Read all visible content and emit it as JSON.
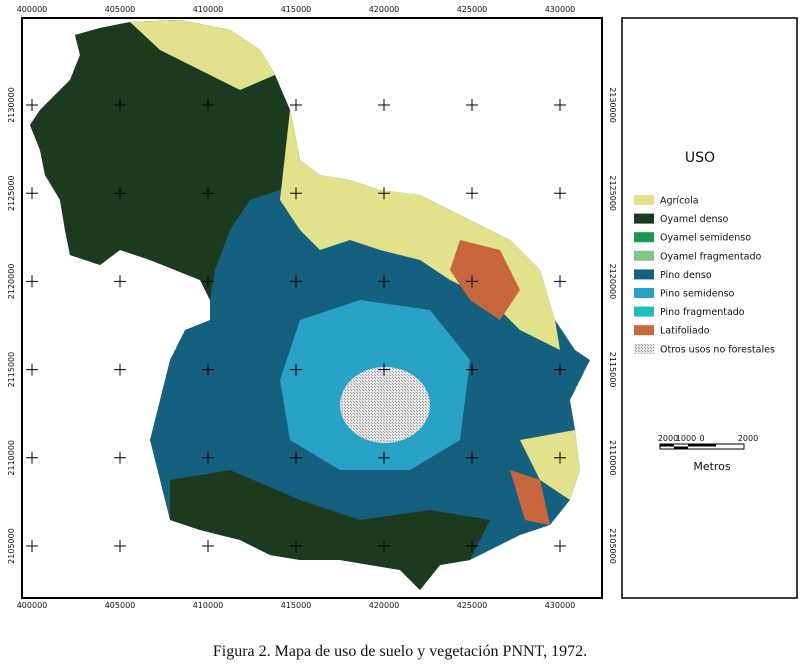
{
  "map": {
    "x_labels": [
      400000,
      405000,
      410000,
      415000,
      420000,
      425000,
      430000
    ],
    "y_labels": [
      2130000,
      2125000,
      2120000,
      2115000,
      2110000,
      2105000
    ],
    "legend": {
      "title": "USO",
      "items": [
        {
          "name": "Agrícola",
          "color": "#e2e28c"
        },
        {
          "name": "Oyamel denso",
          "color": "#1c3b1e"
        },
        {
          "name": "Oyamel semidenso",
          "color": "#1b9a4c"
        },
        {
          "name": "Oyamel fragmentado",
          "color": "#82c482"
        },
        {
          "name": "Pino denso",
          "color": "#15607e"
        },
        {
          "name": "Pino semidenso",
          "color": "#2aa2c8"
        },
        {
          "name": "Pino fragmentado",
          "color": "#22bcbc"
        },
        {
          "name": "Latifoliado",
          "color": "#c8663e"
        },
        {
          "name": "Otros usos no forestales",
          "color": "#cfcfcf"
        }
      ]
    },
    "scale": {
      "labels": [
        "2000",
        "1000",
        "0",
        "2000"
      ],
      "unit": "Metros"
    },
    "caption": "Figura 2. Mapa de uso de suelo y vegetación PNNT, 1972."
  }
}
